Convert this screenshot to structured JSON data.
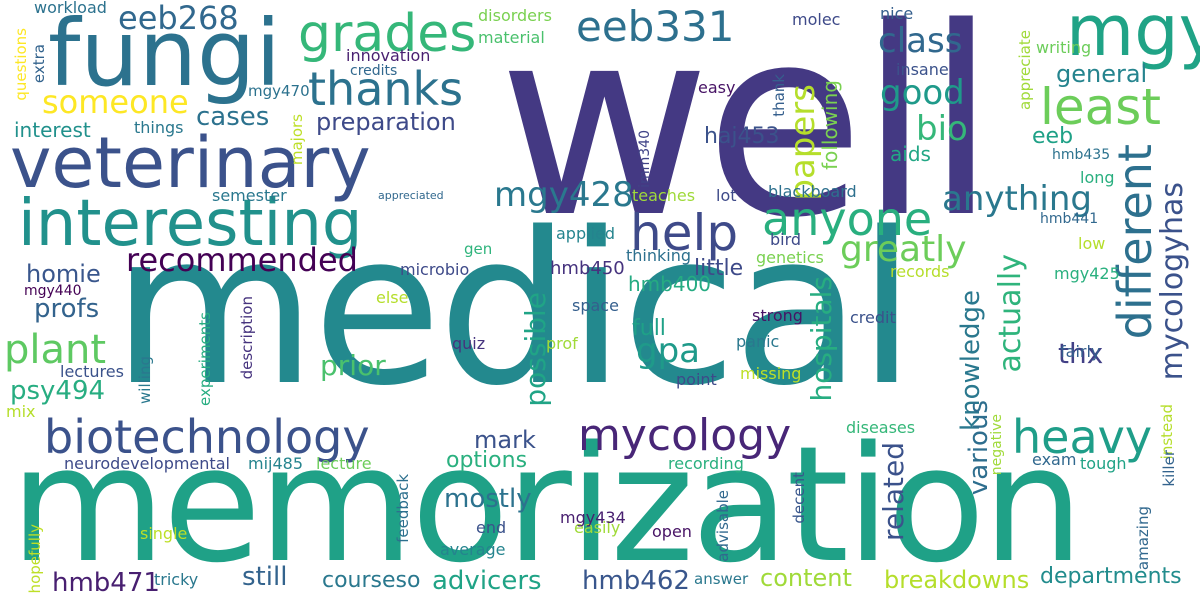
{
  "words": [
    {
      "id": "well",
      "text": "well",
      "color": "#443983"
    },
    {
      "id": "medical",
      "text": "medical",
      "color": "#23898e"
    },
    {
      "id": "memorization",
      "text": "memorization",
      "color": "#1fa187"
    },
    {
      "id": "fungi",
      "text": "fungi",
      "color": "#2c728e"
    },
    {
      "id": "veterinary",
      "text": "veterinary",
      "color": "#3b528b"
    },
    {
      "id": "interesting",
      "text": "interesting",
      "color": "#21918c"
    },
    {
      "id": "biotechnology",
      "text": "biotechnology",
      "color": "#3b528b"
    },
    {
      "id": "mycology",
      "text": "mycology",
      "color": "#482677"
    },
    {
      "id": "grades",
      "text": "grades",
      "color": "#35b779"
    },
    {
      "id": "thanks",
      "text": "thanks",
      "color": "#2c728e"
    },
    {
      "id": "eeb331",
      "text": "eeb331",
      "color": "#2d708e"
    },
    {
      "id": "mgy",
      "text": "mgy",
      "color": "#20a386"
    },
    {
      "id": "least",
      "text": "least",
      "color": "#6ccd5a"
    },
    {
      "id": "heavy",
      "text": "heavy",
      "color": "#1f9e89"
    },
    {
      "id": "different",
      "text": "different",
      "color": "#2d708e"
    },
    {
      "id": "anyone",
      "text": "anyone",
      "color": "#29af7f"
    },
    {
      "id": "help",
      "text": "help",
      "color": "#3e4a89"
    },
    {
      "id": "eeb268",
      "text": "eeb268",
      "color": "#31688e"
    },
    {
      "id": "someone",
      "text": "someone",
      "color": "#fde725"
    },
    {
      "id": "plant",
      "text": "plant",
      "color": "#5ec962"
    },
    {
      "id": "class",
      "text": "class",
      "color": "#31688e"
    },
    {
      "id": "good",
      "text": "good",
      "color": "#1f9a8a"
    },
    {
      "id": "bio",
      "text": "bio",
      "color": "#35b779"
    },
    {
      "id": "papers",
      "text": "papers",
      "color": "#b5de2b"
    },
    {
      "id": "mgy428",
      "text": "mgy428",
      "color": "#2a788e"
    },
    {
      "id": "anything",
      "text": "anything",
      "color": "#2a788e"
    },
    {
      "id": "greatly",
      "text": "greatly",
      "color": "#6ccd5a"
    },
    {
      "id": "mycologyhas",
      "text": "mycologyhas",
      "color": "#3b528b"
    },
    {
      "id": "recommended",
      "text": "recommended",
      "color": "#440154"
    },
    {
      "id": "gpa",
      "text": "gpa",
      "color": "#1f9a8a"
    },
    {
      "id": "preparation",
      "text": "preparation",
      "color": "#3e4a89"
    },
    {
      "id": "cases",
      "text": "cases",
      "color": "#2c728e"
    },
    {
      "id": "interest",
      "text": "interest",
      "color": "#21918c"
    },
    {
      "id": "homie",
      "text": "homie",
      "color": "#39568c"
    },
    {
      "id": "profs",
      "text": "profs",
      "color": "#33638d"
    },
    {
      "id": "psy494",
      "text": "psy494",
      "color": "#27ad81"
    },
    {
      "id": "prior",
      "text": "prior",
      "color": "#4ac16d"
    },
    {
      "id": "mark",
      "text": "mark",
      "color": "#3b528b"
    },
    {
      "id": "options",
      "text": "options",
      "color": "#2ab07f"
    },
    {
      "id": "mostly",
      "text": "mostly",
      "color": "#2c728e"
    },
    {
      "id": "still",
      "text": "still",
      "color": "#33638d"
    },
    {
      "id": "hmb471",
      "text": "hmb471",
      "color": "#481f70"
    },
    {
      "id": "courseso",
      "text": "courseso",
      "color": "#2a788e"
    },
    {
      "id": "advicers",
      "text": "advicers",
      "color": "#20a386"
    },
    {
      "id": "hmb462",
      "text": "hmb462",
      "color": "#39568c"
    },
    {
      "id": "content",
      "text": "content",
      "color": "#a0da39"
    },
    {
      "id": "breakdowns",
      "text": "breakdowns",
      "color": "#b5de2b"
    },
    {
      "id": "departments",
      "text": "departments",
      "color": "#228c8d"
    },
    {
      "id": "general",
      "text": "general",
      "color": "#25848e"
    },
    {
      "id": "eeb",
      "text": "eeb",
      "color": "#1fa187"
    },
    {
      "id": "thx",
      "text": "thx",
      "color": "#424086"
    },
    {
      "id": "actually",
      "text": "actually",
      "color": "#2fb47c"
    },
    {
      "id": "knowledge",
      "text": "knowledge",
      "color": "#2a788e"
    },
    {
      "id": "various",
      "text": "various",
      "color": "#2e6e8e"
    },
    {
      "id": "related",
      "text": "related",
      "color": "#3b528b"
    },
    {
      "id": "hospitals",
      "text": "hospitals",
      "color": "#27ad81"
    },
    {
      "id": "possible",
      "text": "possible",
      "color": "#20a486"
    },
    {
      "id": "full",
      "text": "full",
      "color": "#1fa187"
    },
    {
      "id": "little",
      "text": "little",
      "color": "#3e4a89"
    },
    {
      "id": "following",
      "text": "following",
      "color": "#7ad151"
    },
    {
      "id": "haj453",
      "text": "haj453",
      "color": "#3b528b"
    },
    {
      "id": "aids",
      "text": "aids",
      "color": "#22a785"
    },
    {
      "id": "hmb450",
      "text": "hmb450",
      "color": "#46337e"
    },
    {
      "id": "hmb400",
      "text": "hmb400",
      "color": "#25ab82"
    },
    {
      "id": "workload",
      "text": "workload",
      "color": "#2c728e"
    },
    {
      "id": "questions",
      "text": "questions",
      "color": "#fde725"
    },
    {
      "id": "extra",
      "text": "extra",
      "color": "#33638d"
    },
    {
      "id": "disorders",
      "text": "disorders",
      "color": "#7ad151"
    },
    {
      "id": "material",
      "text": "material",
      "color": "#4ac16d"
    },
    {
      "id": "innovation",
      "text": "innovation",
      "color": "#481f70"
    },
    {
      "id": "credits",
      "text": "credits",
      "color": "#31688e"
    },
    {
      "id": "molec",
      "text": "molec",
      "color": "#3e4a89"
    },
    {
      "id": "nice",
      "text": "nice",
      "color": "#355f8d"
    },
    {
      "id": "insane",
      "text": "insane",
      "color": "#3b528b"
    },
    {
      "id": "easy",
      "text": "easy",
      "color": "#471365"
    },
    {
      "id": "thank",
      "text": "thank",
      "color": "#355f8d"
    },
    {
      "id": "appreciate",
      "text": "appreciate",
      "color": "#a0da39"
    },
    {
      "id": "writing",
      "text": "writing",
      "color": "#6ccd5a"
    },
    {
      "id": "hmb435",
      "text": "hmb435",
      "color": "#2c728e"
    },
    {
      "id": "long",
      "text": "long",
      "color": "#29af7f"
    },
    {
      "id": "mgy470",
      "text": "mgy470",
      "color": "#2c728e"
    },
    {
      "id": "majors",
      "text": "majors",
      "color": "#bddf26"
    },
    {
      "id": "things",
      "text": "things",
      "color": "#2a788e"
    },
    {
      "id": "imm340",
      "text": "imm340",
      "color": "#404387"
    },
    {
      "id": "semester",
      "text": "semester",
      "color": "#2a788e"
    },
    {
      "id": "appreciated",
      "text": "appreciated",
      "color": "#31688e"
    },
    {
      "id": "teaches",
      "text": "teaches",
      "color": "#9fda3a"
    },
    {
      "id": "lot",
      "text": "lot",
      "color": "#3e4a89"
    },
    {
      "id": "blackboard",
      "text": "blackboard",
      "color": "#2d708e"
    },
    {
      "id": "hmb441",
      "text": "hmb441",
      "color": "#31688e"
    },
    {
      "id": "applied",
      "text": "applied",
      "color": "#25848e"
    },
    {
      "id": "bird",
      "text": "bird",
      "color": "#3e4a89"
    },
    {
      "id": "genetics",
      "text": "genetics",
      "color": "#7ad151"
    },
    {
      "id": "records",
      "text": "records",
      "color": "#b5de2b"
    },
    {
      "id": "low",
      "text": "low",
      "color": "#b5de2b"
    },
    {
      "id": "mgy425",
      "text": "mgy425",
      "color": "#2ab07f"
    },
    {
      "id": "mgy440",
      "text": "mgy440",
      "color": "#440154"
    },
    {
      "id": "gen",
      "text": "gen",
      "color": "#2fb47c"
    },
    {
      "id": "microbio",
      "text": "microbio",
      "color": "#3e4a89"
    },
    {
      "id": "thinking",
      "text": "thinking",
      "color": "#2d708e"
    },
    {
      "id": "space",
      "text": "space",
      "color": "#355f8d"
    },
    {
      "id": "strong",
      "text": "strong",
      "color": "#471365"
    },
    {
      "id": "credit",
      "text": "credit",
      "color": "#3b528b"
    },
    {
      "id": "lectures",
      "text": "lectures",
      "color": "#3b528b"
    },
    {
      "id": "willing",
      "text": "willing",
      "color": "#2a788e"
    },
    {
      "id": "experiments",
      "text": "experiments",
      "color": "#27ad81"
    },
    {
      "id": "description",
      "text": "description",
      "color": "#46337e"
    },
    {
      "id": "else",
      "text": "else",
      "color": "#b5de2b"
    },
    {
      "id": "quiz",
      "text": "quiz",
      "color": "#46337e"
    },
    {
      "id": "prof",
      "text": "prof",
      "color": "#a0da39"
    },
    {
      "id": "panic",
      "text": "panic",
      "color": "#2a788e"
    },
    {
      "id": "point",
      "text": "point",
      "color": "#3e4a89"
    },
    {
      "id": "missing",
      "text": "missing",
      "color": "#bddf26"
    },
    {
      "id": "fairly",
      "text": "fairly",
      "color": "#355f8d"
    },
    {
      "id": "mix",
      "text": "mix",
      "color": "#b5de2b"
    },
    {
      "id": "diseases",
      "text": "diseases",
      "color": "#35b779"
    },
    {
      "id": "negative",
      "text": "negative",
      "color": "#a0da39"
    },
    {
      "id": "instead",
      "text": "instead",
      "color": "#b5de2b"
    },
    {
      "id": "exam",
      "text": "exam",
      "color": "#31688e"
    },
    {
      "id": "tough",
      "text": "tough",
      "color": "#20a386"
    },
    {
      "id": "killer",
      "text": "killer",
      "color": "#33638d"
    },
    {
      "id": "neurodevelopmental",
      "text": "neurodevelopmental",
      "color": "#3e4a89"
    },
    {
      "id": "mij485",
      "text": "mij485",
      "color": "#25848e"
    },
    {
      "id": "lecture",
      "text": "lecture",
      "color": "#6ccd5a"
    },
    {
      "id": "recording",
      "text": "recording",
      "color": "#2ab07f"
    },
    {
      "id": "feedback",
      "text": "feedback",
      "color": "#2d708e"
    },
    {
      "id": "advisable",
      "text": "advisable",
      "color": "#31688e"
    },
    {
      "id": "decent",
      "text": "decent",
      "color": "#39568c"
    },
    {
      "id": "amazing",
      "text": "amazing",
      "color": "#31688e"
    },
    {
      "id": "end",
      "text": "end",
      "color": "#3b528b"
    },
    {
      "id": "easily",
      "text": "easily",
      "color": "#a0da39"
    },
    {
      "id": "mgy434",
      "text": "mgy434",
      "color": "#481f70"
    },
    {
      "id": "open",
      "text": "open",
      "color": "#471365"
    },
    {
      "id": "average",
      "text": "average",
      "color": "#25848e"
    },
    {
      "id": "single",
      "text": "single",
      "color": "#bddf26"
    },
    {
      "id": "hopefully",
      "text": "hopefully",
      "color": "#bddf26"
    },
    {
      "id": "tricky",
      "text": "tricky",
      "color": "#2a788e"
    },
    {
      "id": "answer",
      "text": "answer",
      "color": "#2a788e"
    }
  ]
}
